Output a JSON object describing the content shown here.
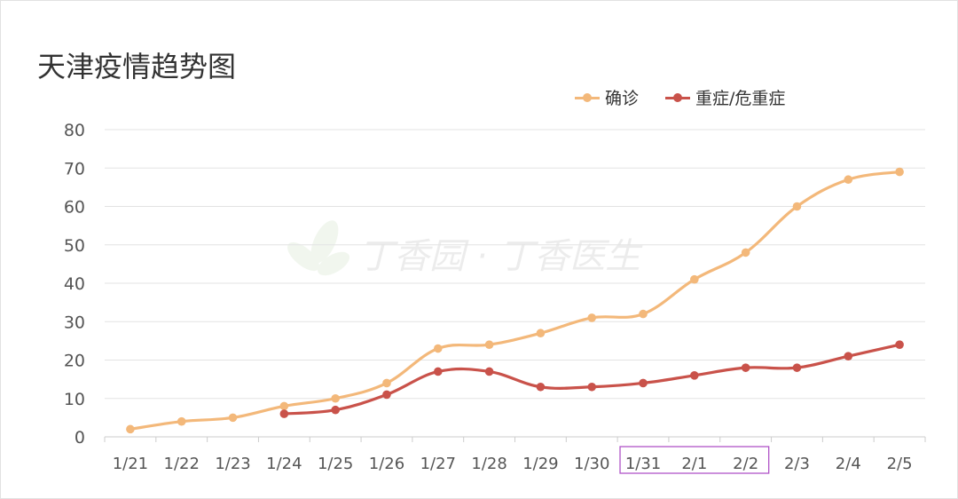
{
  "chart_data": {
    "type": "line",
    "title": "天津疫情趋势图",
    "watermark": "丁香园 · 丁香医生",
    "categories": [
      "1/21",
      "1/22",
      "1/23",
      "1/24",
      "1/25",
      "1/26",
      "1/27",
      "1/28",
      "1/29",
      "1/30",
      "1/31",
      "2/1",
      "2/2",
      "2/3",
      "2/4",
      "2/5"
    ],
    "ylim": [
      0,
      80
    ],
    "yticks": [
      0,
      10,
      20,
      30,
      40,
      50,
      60,
      70,
      80
    ],
    "grid": true,
    "legend_position": "top-right",
    "highlighted_categories": [
      "1/31",
      "2/1",
      "2/2"
    ],
    "highlight_color": "#b054c8",
    "series": [
      {
        "name": "确诊",
        "color": "#f3b87a",
        "values": [
          2,
          4,
          5,
          8,
          10,
          14,
          23,
          24,
          27,
          31,
          32,
          41,
          48,
          60,
          67,
          69
        ]
      },
      {
        "name": "重症/危重症",
        "color": "#c9524a",
        "values": [
          null,
          null,
          null,
          6,
          7,
          11,
          17,
          17,
          13,
          13,
          14,
          16,
          18,
          18,
          21,
          24
        ]
      }
    ]
  }
}
